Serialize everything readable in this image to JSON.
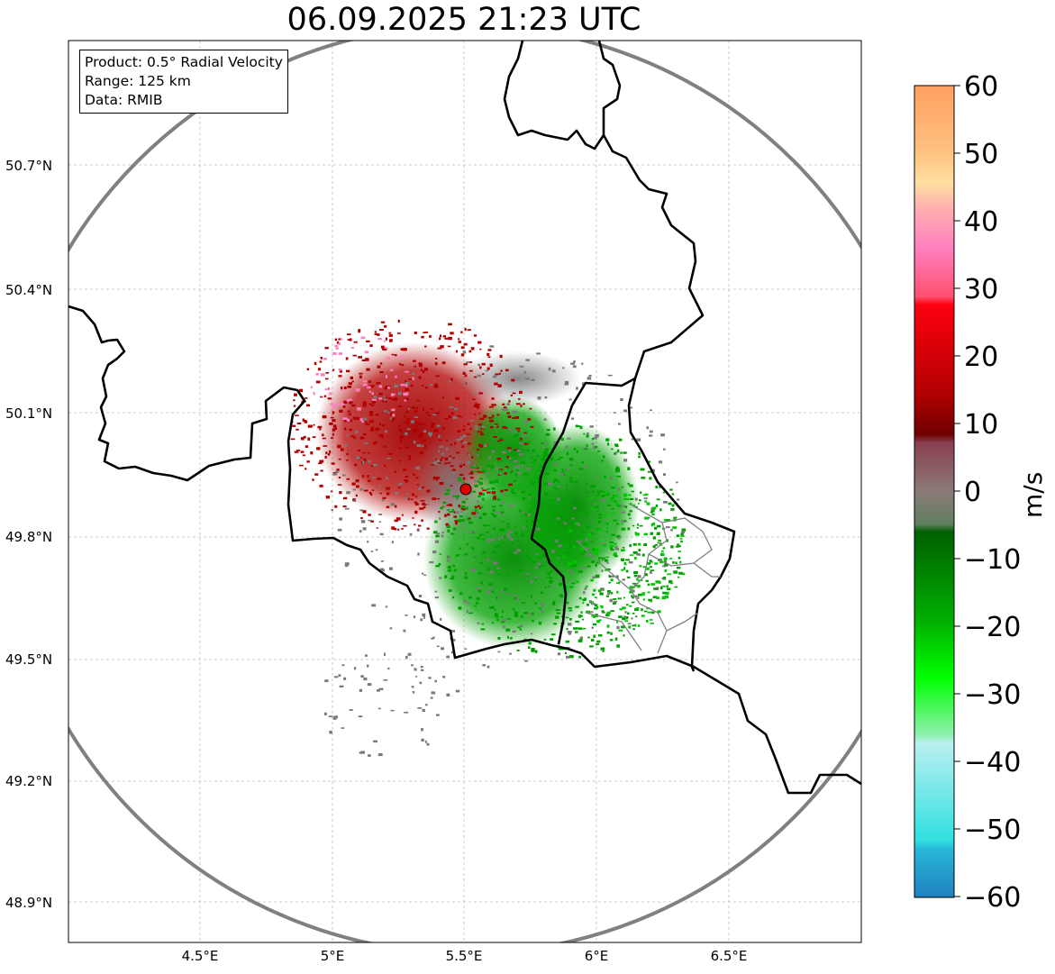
{
  "title": "06.09.2025 21:23 UTC",
  "info": {
    "product": "Product: 0.5° Radial Velocity",
    "range": "Range: 125 km",
    "data": "Data: RMIB"
  },
  "axes": {
    "y_ticks": [
      "50.7°N",
      "50.4°N",
      "50.1°N",
      "49.8°N",
      "49.5°N",
      "49.2°N",
      "48.9°N"
    ],
    "x_ticks": [
      "4.5°E",
      "5°E",
      "5.5°E",
      "6°E",
      "6.5°E"
    ],
    "lat_range": [
      48.8,
      50.99
    ],
    "lon_range": [
      4.0,
      6.99
    ]
  },
  "radar_site": {
    "lon": 5.505,
    "lat": 49.914
  },
  "colorbar": {
    "label": "m/s",
    "ticks": [
      "60",
      "50",
      "40",
      "30",
      "20",
      "10",
      "0",
      "−10",
      "−20",
      "−30",
      "−40",
      "−50",
      "−60"
    ],
    "range": [
      -60,
      60
    ]
  },
  "colors": {
    "receding": "#b00000",
    "approaching": "#00a000",
    "near_zero": "#7a7a7a",
    "range_ring": "#808080",
    "border": "#000000"
  }
}
